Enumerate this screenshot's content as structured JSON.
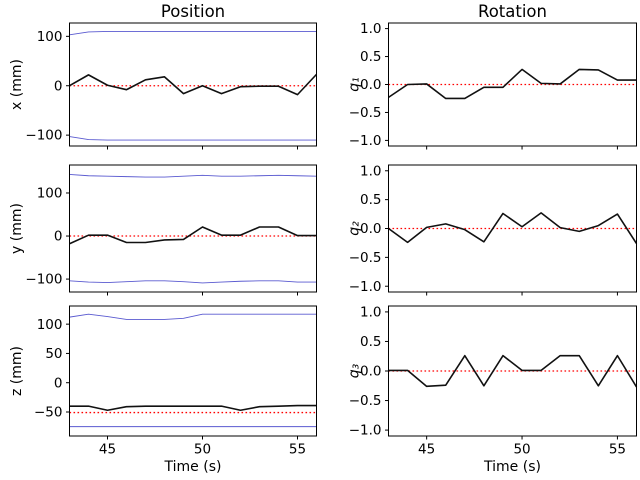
{
  "figure": {
    "background": "#ffffff"
  },
  "colors": {
    "measured": "#111111",
    "bound": "#5a5ad0",
    "reference": "#ff0000",
    "spine": "#000000"
  },
  "time": [
    43,
    44,
    45,
    46,
    47,
    48,
    49,
    50,
    51,
    52,
    53,
    54,
    55,
    56
  ],
  "chart_data": [
    {
      "id": "x-position",
      "type": "line",
      "title": "Position",
      "ylabel": "x (mm)",
      "italic_ylabel": false,
      "xlim": [
        43,
        56
      ],
      "ylim": [
        -122,
        127
      ],
      "grid": false,
      "legend": "none",
      "yticks": [
        {
          "v": 100,
          "label": "100"
        },
        {
          "v": 0,
          "label": "0"
        },
        {
          "v": -100,
          "label": "−100"
        }
      ],
      "xticks": [
        {
          "v": 45,
          "label": "45"
        },
        {
          "v": 50,
          "label": "50"
        },
        {
          "v": 55,
          "label": "55"
        }
      ],
      "show_xtick_labels": false,
      "xlabel": null,
      "series": [
        {
          "name": "upper-bound",
          "role": "bound",
          "values": [
            103,
            109,
            110,
            110,
            110,
            110,
            110,
            110,
            110,
            110,
            110,
            110,
            110,
            110
          ]
        },
        {
          "name": "lower-bound",
          "role": "bound",
          "values": [
            -103,
            -109,
            -110,
            -110,
            -110,
            -110,
            -110,
            -110,
            -110,
            -110,
            -110,
            -110,
            -110,
            -110
          ]
        },
        {
          "name": "reference",
          "role": "reference",
          "const": 0
        },
        {
          "name": "measured",
          "role": "measured",
          "values": [
            0,
            22,
            1,
            -8,
            12,
            18,
            -16,
            0,
            -16,
            -2,
            -1,
            -1,
            -18,
            23
          ]
        }
      ]
    },
    {
      "id": "q1-rotation",
      "type": "line",
      "title": "Rotation",
      "ylabel": "q₁",
      "italic_ylabel": true,
      "xlim": [
        43,
        56
      ],
      "ylim": [
        -1.1,
        1.1
      ],
      "grid": false,
      "legend": "none",
      "yticks": [
        {
          "v": 1.0,
          "label": "1.0"
        },
        {
          "v": 0.5,
          "label": "0.5"
        },
        {
          "v": 0.0,
          "label": "0.0"
        },
        {
          "v": -0.5,
          "label": "−0.5"
        },
        {
          "v": -1.0,
          "label": "−1.0"
        }
      ],
      "xticks": [
        {
          "v": 45,
          "label": "45"
        },
        {
          "v": 50,
          "label": "50"
        },
        {
          "v": 55,
          "label": "55"
        }
      ],
      "show_xtick_labels": false,
      "xlabel": null,
      "series": [
        {
          "name": "reference",
          "role": "reference",
          "const": 0
        },
        {
          "name": "measured",
          "role": "measured",
          "values": [
            -0.23,
            0.0,
            0.01,
            -0.25,
            -0.25,
            -0.05,
            -0.05,
            0.27,
            0.02,
            0.01,
            0.27,
            0.26,
            0.08,
            0.08
          ]
        }
      ]
    },
    {
      "id": "y-position",
      "type": "line",
      "title": null,
      "ylabel": "y (mm)",
      "italic_ylabel": false,
      "xlim": [
        43,
        56
      ],
      "ylim": [
        -130,
        165
      ],
      "grid": false,
      "legend": "none",
      "yticks": [
        {
          "v": 100,
          "label": "100"
        },
        {
          "v": 0,
          "label": "0"
        },
        {
          "v": -100,
          "label": "−100"
        }
      ],
      "xticks": [
        {
          "v": 45,
          "label": "45"
        },
        {
          "v": 50,
          "label": "50"
        },
        {
          "v": 55,
          "label": "55"
        }
      ],
      "show_xtick_labels": false,
      "xlabel": null,
      "series": [
        {
          "name": "upper-bound",
          "role": "bound",
          "values": [
            143,
            140,
            139,
            138,
            137,
            137,
            139,
            141,
            139,
            139,
            140,
            141,
            140,
            139
          ]
        },
        {
          "name": "lower-bound",
          "role": "bound",
          "values": [
            -104,
            -107,
            -108,
            -106,
            -104,
            -104,
            -106,
            -109,
            -107,
            -105,
            -104,
            -104,
            -107,
            -107
          ]
        },
        {
          "name": "reference",
          "role": "reference",
          "const": 0
        },
        {
          "name": "measured",
          "role": "measured",
          "values": [
            -18,
            2,
            2,
            -15,
            -15,
            -9,
            -8,
            21,
            2,
            2,
            21,
            21,
            1,
            1
          ]
        }
      ]
    },
    {
      "id": "q2-rotation",
      "type": "line",
      "title": null,
      "ylabel": "q₂",
      "italic_ylabel": true,
      "xlim": [
        43,
        56
      ],
      "ylim": [
        -1.1,
        1.1
      ],
      "grid": false,
      "legend": "none",
      "yticks": [
        {
          "v": 1.0,
          "label": "1.0"
        },
        {
          "v": 0.5,
          "label": "0.5"
        },
        {
          "v": 0.0,
          "label": "0.0"
        },
        {
          "v": -0.5,
          "label": "−0.5"
        },
        {
          "v": -1.0,
          "label": "−1.0"
        }
      ],
      "xticks": [
        {
          "v": 45,
          "label": "45"
        },
        {
          "v": 50,
          "label": "50"
        },
        {
          "v": 55,
          "label": "55"
        }
      ],
      "show_xtick_labels": false,
      "xlabel": null,
      "series": [
        {
          "name": "reference",
          "role": "reference",
          "const": 0
        },
        {
          "name": "measured",
          "role": "measured",
          "values": [
            0.0,
            -0.24,
            0.02,
            0.08,
            -0.02,
            -0.23,
            0.26,
            0.03,
            0.27,
            0.015,
            -0.05,
            0.05,
            0.25,
            -0.26
          ]
        }
      ]
    },
    {
      "id": "z-position",
      "type": "line",
      "title": null,
      "ylabel": "z (mm)",
      "italic_ylabel": false,
      "xlim": [
        43,
        56
      ],
      "ylim": [
        -91,
        131
      ],
      "grid": false,
      "legend": "none",
      "yticks": [
        {
          "v": 100,
          "label": "100"
        },
        {
          "v": 50,
          "label": "50"
        },
        {
          "v": 0,
          "label": "0"
        },
        {
          "v": -50,
          "label": "−50"
        }
      ],
      "xticks": [
        {
          "v": 45,
          "label": "45"
        },
        {
          "v": 50,
          "label": "50"
        },
        {
          "v": 55,
          "label": "55"
        }
      ],
      "show_xtick_labels": true,
      "xlabel": "Time (s)",
      "series": [
        {
          "name": "upper-bound",
          "role": "bound",
          "values": [
            112,
            117,
            113,
            108,
            108,
            108,
            110,
            117,
            117,
            117,
            117,
            117,
            117,
            117
          ]
        },
        {
          "name": "lower-bound",
          "role": "bound",
          "values": [
            -75,
            -75,
            -75,
            -75,
            -75,
            -75,
            -75,
            -75,
            -75,
            -75,
            -75,
            -75,
            -75,
            -75
          ]
        },
        {
          "name": "reference",
          "role": "reference",
          "const": -51
        },
        {
          "name": "measured",
          "role": "measured",
          "values": [
            -40,
            -40,
            -47,
            -41,
            -40,
            -40,
            -40,
            -40,
            -40,
            -47,
            -41,
            -40,
            -39,
            -39
          ]
        }
      ]
    },
    {
      "id": "q3-rotation",
      "type": "line",
      "title": null,
      "ylabel": "q₃",
      "italic_ylabel": true,
      "xlim": [
        43,
        56
      ],
      "ylim": [
        -1.1,
        1.1
      ],
      "grid": false,
      "legend": "none",
      "yticks": [
        {
          "v": 1.0,
          "label": "1.0"
        },
        {
          "v": 0.5,
          "label": "0.5"
        },
        {
          "v": 0.0,
          "label": "0.0"
        },
        {
          "v": -0.5,
          "label": "−0.5"
        },
        {
          "v": -1.0,
          "label": "−1.0"
        }
      ],
      "xticks": [
        {
          "v": 45,
          "label": "45"
        },
        {
          "v": 50,
          "label": "50"
        },
        {
          "v": 55,
          "label": "55"
        }
      ],
      "show_xtick_labels": true,
      "xlabel": "Time (s)",
      "series": [
        {
          "name": "reference",
          "role": "reference",
          "const": 0
        },
        {
          "name": "measured",
          "role": "measured",
          "values": [
            0.01,
            0.01,
            -0.26,
            -0.24,
            0.26,
            -0.25,
            0.26,
            0.01,
            0.01,
            0.26,
            0.26,
            -0.25,
            0.26,
            -0.27
          ]
        }
      ]
    }
  ]
}
